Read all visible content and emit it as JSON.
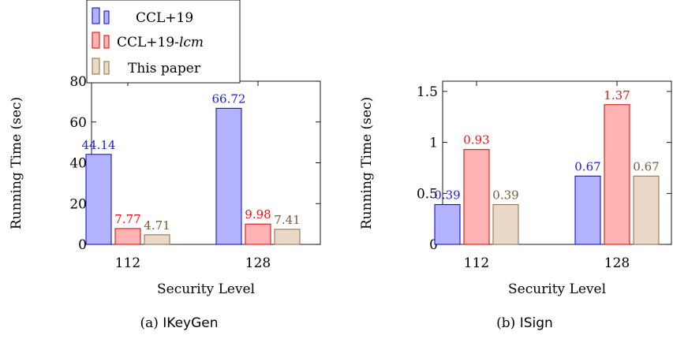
{
  "legend": {
    "entries": [
      "CCL+19",
      "CCL+19-",
      "This paper"
    ],
    "entry2_italic": "lcm"
  },
  "series_styles": [
    {
      "fill": "#b3b3ff",
      "stroke": "#0000cc",
      "label_color": "#1a1aee"
    },
    {
      "fill": "#ffb3b3",
      "stroke": "#dd0000",
      "label_color": "#ee1111"
    },
    {
      "fill": "#ead9c6",
      "stroke": "#8b6a45",
      "label_color": "#7a5a35"
    }
  ],
  "chart_data": [
    {
      "type": "bar",
      "caption_prefix": "(a)",
      "caption_name": "IKeyGen",
      "xlabel": "Security Level",
      "ylabel": "Running Time (sec)",
      "categories": [
        "112",
        "128"
      ],
      "ylim": [
        0,
        80
      ],
      "yticks": [
        0,
        20,
        40,
        60,
        80
      ],
      "ytick_labels": [
        "0",
        "20",
        "40",
        "60",
        "80"
      ],
      "series": [
        {
          "name": "CCL+19",
          "values": [
            44.14,
            66.72
          ],
          "labels": [
            "44.14",
            "66.72"
          ]
        },
        {
          "name": "CCL+19-lcm",
          "values": [
            7.77,
            9.98
          ],
          "labels": [
            "7.77",
            "9.98"
          ]
        },
        {
          "name": "This paper",
          "values": [
            4.71,
            7.41
          ],
          "labels": [
            "4.71",
            "7.41"
          ]
        }
      ]
    },
    {
      "type": "bar",
      "caption_prefix": "(b)",
      "caption_name": "ISign",
      "xlabel": "Security Level",
      "ylabel": "Running Time (sec)",
      "categories": [
        "112",
        "128"
      ],
      "ylim": [
        0,
        1.6
      ],
      "yticks": [
        0,
        0.5,
        1,
        1.5
      ],
      "ytick_labels": [
        "0",
        "0.5",
        "1",
        "1.5"
      ],
      "series": [
        {
          "name": "CCL+19",
          "values": [
            0.39,
            0.67
          ],
          "labels": [
            "0.39",
            "0.67"
          ]
        },
        {
          "name": "CCL+19-lcm",
          "values": [
            0.93,
            1.37
          ],
          "labels": [
            "0.93",
            "1.37"
          ]
        },
        {
          "name": "This paper",
          "values": [
            0.39,
            0.67
          ],
          "labels": [
            "0.39",
            "0.67"
          ]
        }
      ]
    }
  ]
}
